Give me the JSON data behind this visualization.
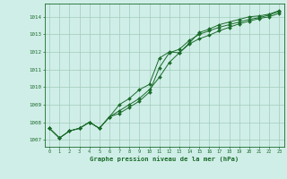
{
  "x": [
    0,
    1,
    2,
    3,
    4,
    5,
    6,
    7,
    8,
    9,
    10,
    11,
    12,
    13,
    14,
    15,
    16,
    17,
    18,
    19,
    20,
    21,
    22,
    23
  ],
  "line1": [
    1007.65,
    1007.1,
    1007.5,
    1007.65,
    1008.0,
    1007.65,
    1008.3,
    1009.0,
    1009.35,
    1009.85,
    1010.15,
    1011.65,
    1012.0,
    1011.95,
    1012.5,
    1013.1,
    1013.3,
    1013.55,
    1013.7,
    1013.85,
    1014.0,
    1014.05,
    1014.15,
    1014.35
  ],
  "line2": [
    1007.65,
    1007.1,
    1007.5,
    1007.65,
    1008.0,
    1007.65,
    1008.3,
    1008.65,
    1009.0,
    1009.35,
    1009.85,
    1010.55,
    1011.4,
    1011.95,
    1012.45,
    1012.75,
    1012.95,
    1013.2,
    1013.4,
    1013.6,
    1013.75,
    1013.9,
    1014.0,
    1014.2
  ],
  "line3": [
    1007.65,
    1007.1,
    1007.5,
    1007.65,
    1008.0,
    1007.65,
    1008.3,
    1008.5,
    1008.85,
    1009.2,
    1009.7,
    1011.1,
    1011.95,
    1012.15,
    1012.65,
    1013.0,
    1013.2,
    1013.4,
    1013.55,
    1013.7,
    1013.85,
    1013.95,
    1014.1,
    1014.3
  ],
  "bg_color": "#d0eee8",
  "grid_color": "#a0ccbb",
  "line_color": "#1a6b2a",
  "ylim": [
    1006.6,
    1014.75
  ],
  "yticks": [
    1007,
    1008,
    1009,
    1010,
    1011,
    1012,
    1013,
    1014
  ],
  "xticks": [
    0,
    1,
    2,
    3,
    4,
    5,
    6,
    7,
    8,
    9,
    10,
    11,
    12,
    13,
    14,
    15,
    16,
    17,
    18,
    19,
    20,
    21,
    22,
    23
  ],
  "xlabel": "Graphe pression niveau de la mer (hPa)"
}
